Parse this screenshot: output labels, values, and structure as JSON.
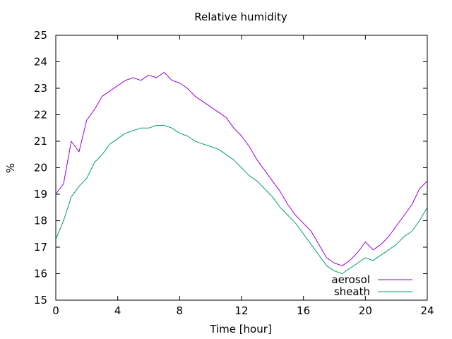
{
  "chart_data": {
    "type": "line",
    "title": "Relative humidity",
    "xlabel": "Time [hour]",
    "ylabel": "%",
    "xlim": [
      0,
      24
    ],
    "ylim": [
      15,
      25
    ],
    "xticks": [
      0,
      4,
      8,
      12,
      16,
      20,
      24
    ],
    "yticks": [
      15,
      16,
      17,
      18,
      19,
      20,
      21,
      22,
      23,
      24,
      25
    ],
    "grid": false,
    "legend_position": "bottom-right",
    "series": [
      {
        "name": "aerosol",
        "color": "#9400d3",
        "x": [
          0,
          0.5,
          1,
          1.5,
          2,
          2.5,
          3,
          3.5,
          4,
          4.5,
          5,
          5.5,
          6,
          6.5,
          7,
          7.5,
          8,
          8.5,
          9,
          9.5,
          10,
          10.5,
          11,
          11.5,
          12,
          12.5,
          13,
          13.5,
          14,
          14.5,
          15,
          15.5,
          16,
          16.5,
          17,
          17.5,
          18,
          18.5,
          19,
          19.5,
          20,
          20.5,
          21,
          21.5,
          22,
          22.5,
          23,
          23.5,
          24
        ],
        "y": [
          19.0,
          19.4,
          21.0,
          20.6,
          21.8,
          22.2,
          22.7,
          22.9,
          23.1,
          23.3,
          23.4,
          23.3,
          23.5,
          23.4,
          23.6,
          23.3,
          23.2,
          23.0,
          22.7,
          22.5,
          22.3,
          22.1,
          21.9,
          21.5,
          21.2,
          20.8,
          20.3,
          19.9,
          19.5,
          19.1,
          18.6,
          18.2,
          17.9,
          17.6,
          17.1,
          16.6,
          16.4,
          16.3,
          16.5,
          16.8,
          17.2,
          16.9,
          17.1,
          17.4,
          17.8,
          18.2,
          18.6,
          19.2,
          19.5
        ]
      },
      {
        "name": "sheath",
        "color": "#009e73",
        "x": [
          0,
          0.5,
          1,
          1.5,
          2,
          2.5,
          3,
          3.5,
          4,
          4.5,
          5,
          5.5,
          6,
          6.5,
          7,
          7.5,
          8,
          8.5,
          9,
          9.5,
          10,
          10.5,
          11,
          11.5,
          12,
          12.5,
          13,
          13.5,
          14,
          14.5,
          15,
          15.5,
          16,
          16.5,
          17,
          17.5,
          18,
          18.5,
          19,
          19.5,
          20,
          20.5,
          21,
          21.5,
          22,
          22.5,
          23,
          23.5,
          24
        ],
        "y": [
          17.3,
          18.0,
          18.9,
          19.3,
          19.6,
          20.2,
          20.5,
          20.9,
          21.1,
          21.3,
          21.4,
          21.5,
          21.5,
          21.6,
          21.6,
          21.5,
          21.3,
          21.2,
          21.0,
          20.9,
          20.8,
          20.7,
          20.5,
          20.3,
          20.0,
          19.7,
          19.5,
          19.2,
          18.9,
          18.5,
          18.2,
          17.9,
          17.5,
          17.1,
          16.7,
          16.3,
          16.1,
          16.0,
          16.2,
          16.4,
          16.6,
          16.5,
          16.7,
          16.9,
          17.1,
          17.4,
          17.6,
          18.0,
          18.5
        ]
      }
    ]
  }
}
